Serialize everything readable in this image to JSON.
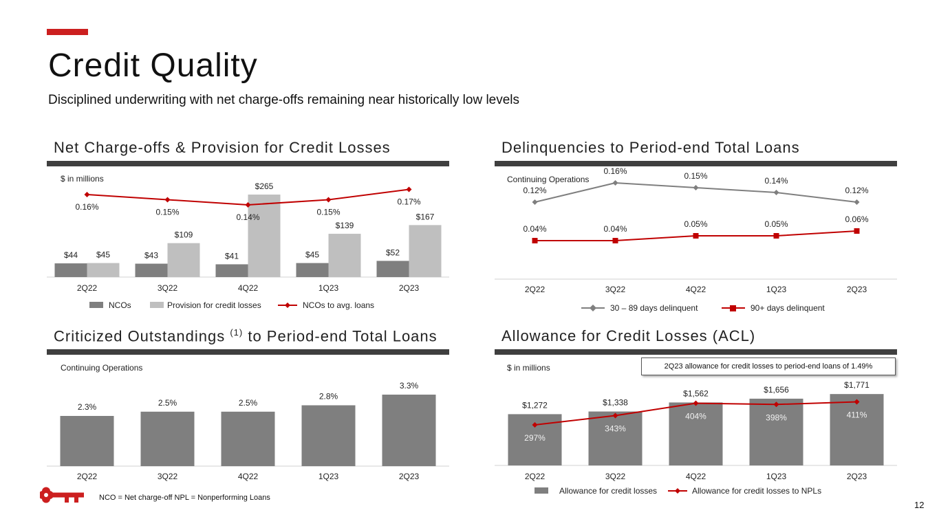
{
  "page": {
    "title": "Credit Quality",
    "subtitle": "Disciplined underwriting with net charge-offs remaining near historically low levels",
    "footnote": "NCO = Net charge-off   NPL = Nonperforming Loans",
    "page_number": "12",
    "accent_color": "#cc1f1f"
  },
  "sections": {
    "nco": {
      "title": "Net Charge-offs & Provision for Credit Losses"
    },
    "delinq": {
      "title": "Delinquencies to Period-end Total Loans"
    },
    "crit": {
      "title": "Criticized Outstandings ",
      "sup": "(1)",
      "title_rest": " to Period-end Total Loans"
    },
    "acl": {
      "title": "Allowance for Credit Losses (ACL)",
      "callout": "2Q23 allowance for credit losses to period-end loans of 1.49%"
    }
  },
  "chart_data": [
    {
      "id": "nco",
      "type": "bar",
      "note": "$ in millions",
      "categories": [
        "2Q22",
        "3Q22",
        "4Q22",
        "1Q23",
        "2Q23"
      ],
      "series": [
        {
          "name": "NCOs",
          "kind": "bar",
          "color": "#7f7f7f",
          "values": [
            44,
            43,
            41,
            45,
            52
          ],
          "labels": [
            "$44",
            "$43",
            "$41",
            "$45",
            "$52"
          ]
        },
        {
          "name": "Provision for credit losses",
          "kind": "bar",
          "color": "#bfbfbf",
          "values": [
            45,
            109,
            265,
            139,
            167
          ],
          "labels": [
            "$45",
            "$109",
            "$265",
            "$139",
            "$167"
          ]
        },
        {
          "name": "NCOs to avg. loans",
          "kind": "line",
          "color": "#c00000",
          "values": [
            0.16,
            0.15,
            0.14,
            0.15,
            0.17
          ],
          "labels": [
            "0.16%",
            "0.15%",
            "0.14%",
            "0.15%",
            "0.17%"
          ]
        }
      ]
    },
    {
      "id": "delinq",
      "type": "line",
      "note": "Continuing Operations",
      "categories": [
        "2Q22",
        "3Q22",
        "4Q22",
        "1Q23",
        "2Q23"
      ],
      "series": [
        {
          "name": "30 – 89 days delinquent",
          "color": "#7f7f7f",
          "marker": "diamond",
          "values": [
            0.12,
            0.16,
            0.15,
            0.14,
            0.12
          ],
          "labels": [
            "0.12%",
            "0.16%",
            "0.15%",
            "0.14%",
            "0.12%"
          ]
        },
        {
          "name": "90+ days delinquent",
          "color": "#c00000",
          "marker": "square",
          "values": [
            0.04,
            0.04,
            0.05,
            0.05,
            0.06
          ],
          "labels": [
            "0.04%",
            "0.04%",
            "0.05%",
            "0.05%",
            "0.06%"
          ]
        }
      ]
    },
    {
      "id": "crit",
      "type": "bar",
      "note": "Continuing Operations",
      "categories": [
        "2Q22",
        "3Q22",
        "4Q22",
        "1Q23",
        "2Q23"
      ],
      "series": [
        {
          "name": "Criticized outstandings to period-end total loans",
          "color": "#7f7f7f",
          "values": [
            2.3,
            2.5,
            2.5,
            2.8,
            3.3
          ],
          "labels": [
            "2.3%",
            "2.5%",
            "2.5%",
            "2.8%",
            "3.3%"
          ]
        }
      ]
    },
    {
      "id": "acl",
      "type": "bar",
      "note": "$ in millions",
      "categories": [
        "2Q22",
        "3Q22",
        "4Q22",
        "1Q23",
        "2Q23"
      ],
      "series": [
        {
          "name": "Allowance for credit losses",
          "kind": "bar",
          "color": "#7f7f7f",
          "values": [
            1272,
            1338,
            1562,
            1656,
            1771
          ],
          "labels": [
            "$1,272",
            "$1,338",
            "$1,562",
            "$1,656",
            "$1,771"
          ]
        },
        {
          "name": "Allowance for credit losses to NPLs",
          "kind": "line",
          "color": "#c00000",
          "values": [
            297,
            343,
            404,
            398,
            411
          ],
          "labels": [
            "297%",
            "343%",
            "404%",
            "398%",
            "411%"
          ]
        }
      ]
    }
  ]
}
